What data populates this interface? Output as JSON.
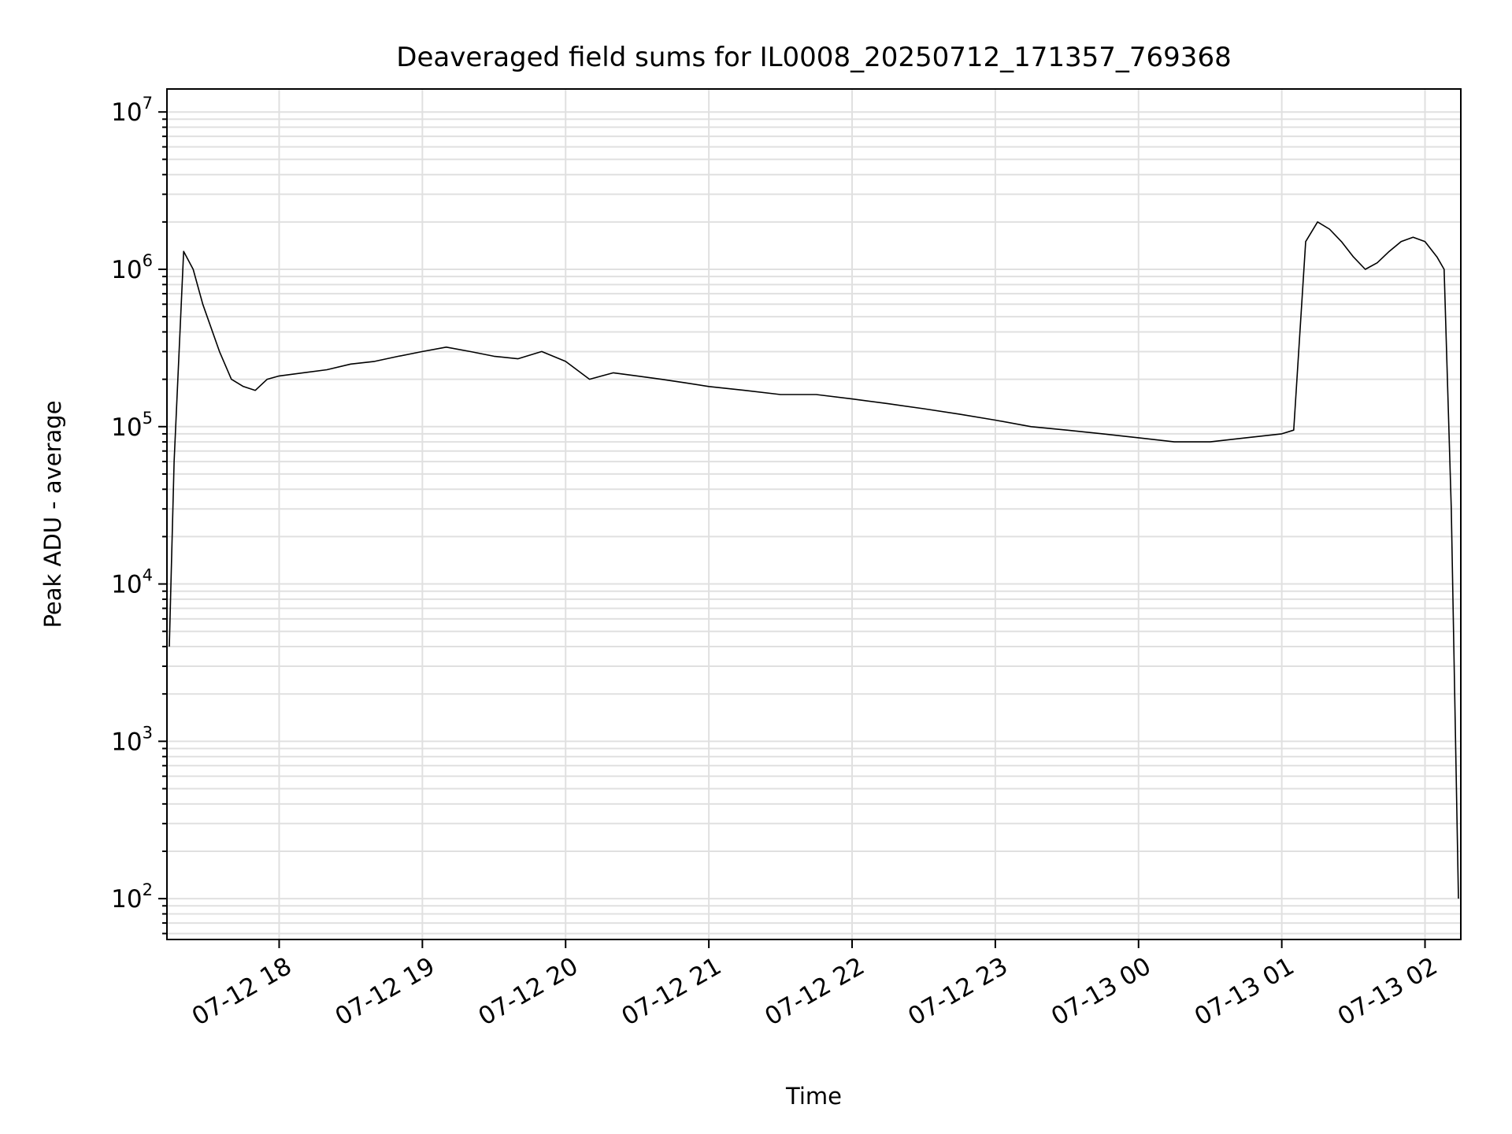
{
  "chart_data": {
    "type": "line",
    "title": "Deaveraged field sums for IL0008_20250712_171357_769368",
    "xlabel": "Time",
    "ylabel": "Peak ADU - average",
    "yscale": "log",
    "ylim": [
      55,
      14000000
    ],
    "xlim": [
      "2025-07-12 17:13",
      "2025-07-13 02:15"
    ],
    "grid": true,
    "line_color": "#000000",
    "grid_color": "#e0e0e0",
    "y_ticks": [
      {
        "base": "10",
        "exp": "2",
        "value": 100
      },
      {
        "base": "10",
        "exp": "3",
        "value": 1000
      },
      {
        "base": "10",
        "exp": "4",
        "value": 10000
      },
      {
        "base": "10",
        "exp": "5",
        "value": 100000
      },
      {
        "base": "10",
        "exp": "6",
        "value": 1000000
      },
      {
        "base": "10",
        "exp": "7",
        "value": 10000000
      }
    ],
    "x_ticks": [
      {
        "label": "07-12 18",
        "time": "2025-07-12 18:00"
      },
      {
        "label": "07-12 19",
        "time": "2025-07-12 19:00"
      },
      {
        "label": "07-12 20",
        "time": "2025-07-12 20:00"
      },
      {
        "label": "07-12 21",
        "time": "2025-07-12 21:00"
      },
      {
        "label": "07-12 22",
        "time": "2025-07-12 22:00"
      },
      {
        "label": "07-12 23",
        "time": "2025-07-12 23:00"
      },
      {
        "label": "07-13 00",
        "time": "2025-07-13 00:00"
      },
      {
        "label": "07-13 01",
        "time": "2025-07-13 01:00"
      },
      {
        "label": "07-13 02",
        "time": "2025-07-13 02:00"
      }
    ],
    "series": [
      {
        "x": [
          "2025-07-12 17:14",
          "2025-07-12 17:16",
          "2025-07-12 17:20",
          "2025-07-12 17:24",
          "2025-07-12 17:28",
          "2025-07-12 17:35",
          "2025-07-12 17:40",
          "2025-07-12 17:45",
          "2025-07-12 17:50",
          "2025-07-12 17:55",
          "2025-07-12 18:00",
          "2025-07-12 18:10",
          "2025-07-12 18:20",
          "2025-07-12 18:30",
          "2025-07-12 18:40",
          "2025-07-12 18:50",
          "2025-07-12 19:00",
          "2025-07-12 19:10",
          "2025-07-12 19:20",
          "2025-07-12 19:30",
          "2025-07-12 19:40",
          "2025-07-12 19:50",
          "2025-07-12 20:00",
          "2025-07-12 20:10",
          "2025-07-12 20:20",
          "2025-07-12 20:30",
          "2025-07-12 20:40",
          "2025-07-12 20:50",
          "2025-07-12 21:00",
          "2025-07-12 21:15",
          "2025-07-12 21:30",
          "2025-07-12 21:45",
          "2025-07-12 22:00",
          "2025-07-12 22:15",
          "2025-07-12 22:30",
          "2025-07-12 22:45",
          "2025-07-12 23:00",
          "2025-07-12 23:15",
          "2025-07-12 23:30",
          "2025-07-12 23:45",
          "2025-07-13 00:00",
          "2025-07-13 00:15",
          "2025-07-13 00:30",
          "2025-07-13 00:45",
          "2025-07-13 01:00",
          "2025-07-13 01:05",
          "2025-07-13 01:10",
          "2025-07-13 01:15",
          "2025-07-13 01:20",
          "2025-07-13 01:25",
          "2025-07-13 01:30",
          "2025-07-13 01:35",
          "2025-07-13 01:40",
          "2025-07-13 01:45",
          "2025-07-13 01:50",
          "2025-07-13 01:55",
          "2025-07-13 02:00",
          "2025-07-13 02:05",
          "2025-07-13 02:08",
          "2025-07-13 02:11",
          "2025-07-13 02:14"
        ],
        "values": [
          4000,
          60000,
          1300000,
          1000000,
          600000,
          300000,
          200000,
          180000,
          170000,
          200000,
          210000,
          220000,
          230000,
          250000,
          260000,
          280000,
          300000,
          320000,
          300000,
          280000,
          270000,
          300000,
          260000,
          200000,
          220000,
          210000,
          200000,
          190000,
          180000,
          170000,
          160000,
          160000,
          150000,
          140000,
          130000,
          120000,
          110000,
          100000,
          95000,
          90000,
          85000,
          80000,
          80000,
          85000,
          90000,
          95000,
          1500000,
          2000000,
          1800000,
          1500000,
          1200000,
          1000000,
          1100000,
          1300000,
          1500000,
          1600000,
          1500000,
          1200000,
          1000000,
          30000,
          100
        ]
      }
    ]
  }
}
